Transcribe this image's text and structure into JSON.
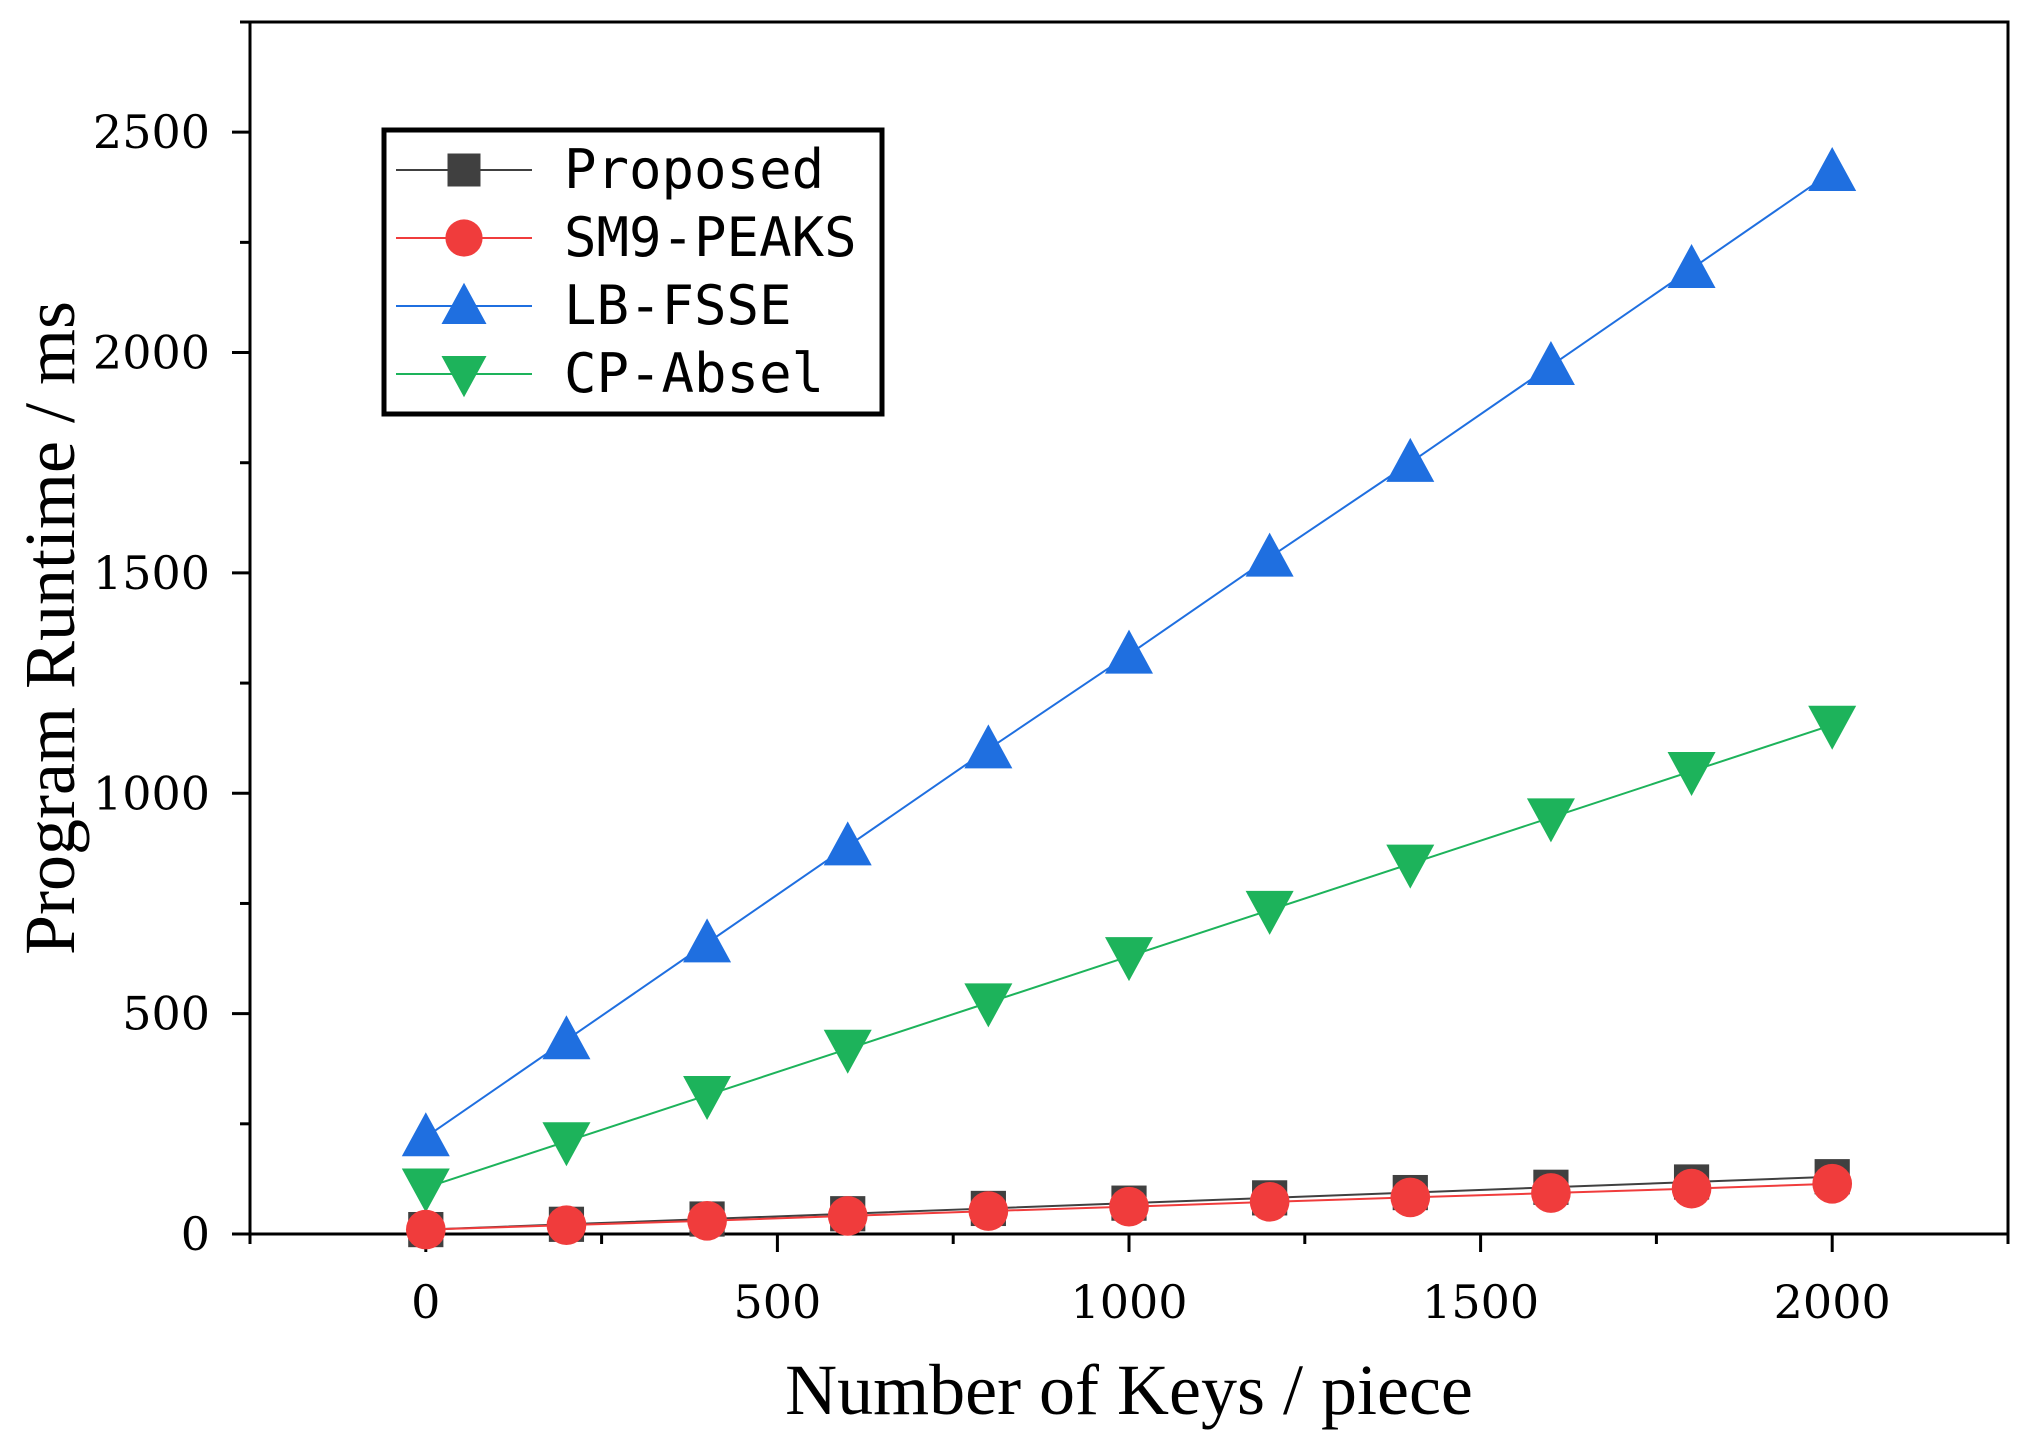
{
  "chart_data": {
    "type": "line",
    "title": "",
    "xlabel": "Number of Keys / piece",
    "ylabel": "Program Runtime / ms",
    "xlim": [
      -250,
      2250
    ],
    "ylim": [
      0,
      2750
    ],
    "x_ticks": [
      0,
      500,
      1000,
      1500,
      2000
    ],
    "y_ticks": [
      0,
      500,
      1000,
      1500,
      2000,
      2500
    ],
    "grid": false,
    "legend_position": "top-left",
    "x": [
      0,
      200,
      400,
      600,
      800,
      1000,
      1200,
      1400,
      1600,
      1800,
      2000
    ],
    "series": [
      {
        "name": "Proposed",
        "marker": "square",
        "color": "#404040",
        "values": [
          10,
          22,
          34,
          46,
          58,
          70,
          82,
          94,
          106,
          118,
          130
        ]
      },
      {
        "name": "SM9-PEAKS",
        "marker": "circle",
        "color": "#f03c3c",
        "values": [
          10,
          20,
          30,
          41,
          52,
          62,
          73,
          83,
          93,
          103,
          114
        ]
      },
      {
        "name": "LB-FSSE",
        "marker": "triangle-up",
        "color": "#1f6fe0",
        "values": [
          220,
          440,
          660,
          880,
          1100,
          1315,
          1535,
          1750,
          1970,
          2190,
          2410
        ]
      },
      {
        "name": "CP-Absel",
        "marker": "triangle-down",
        "color": "#1db35b",
        "values": [
          105,
          210,
          315,
          420,
          525,
          630,
          735,
          840,
          945,
          1050,
          1155
        ]
      }
    ]
  }
}
